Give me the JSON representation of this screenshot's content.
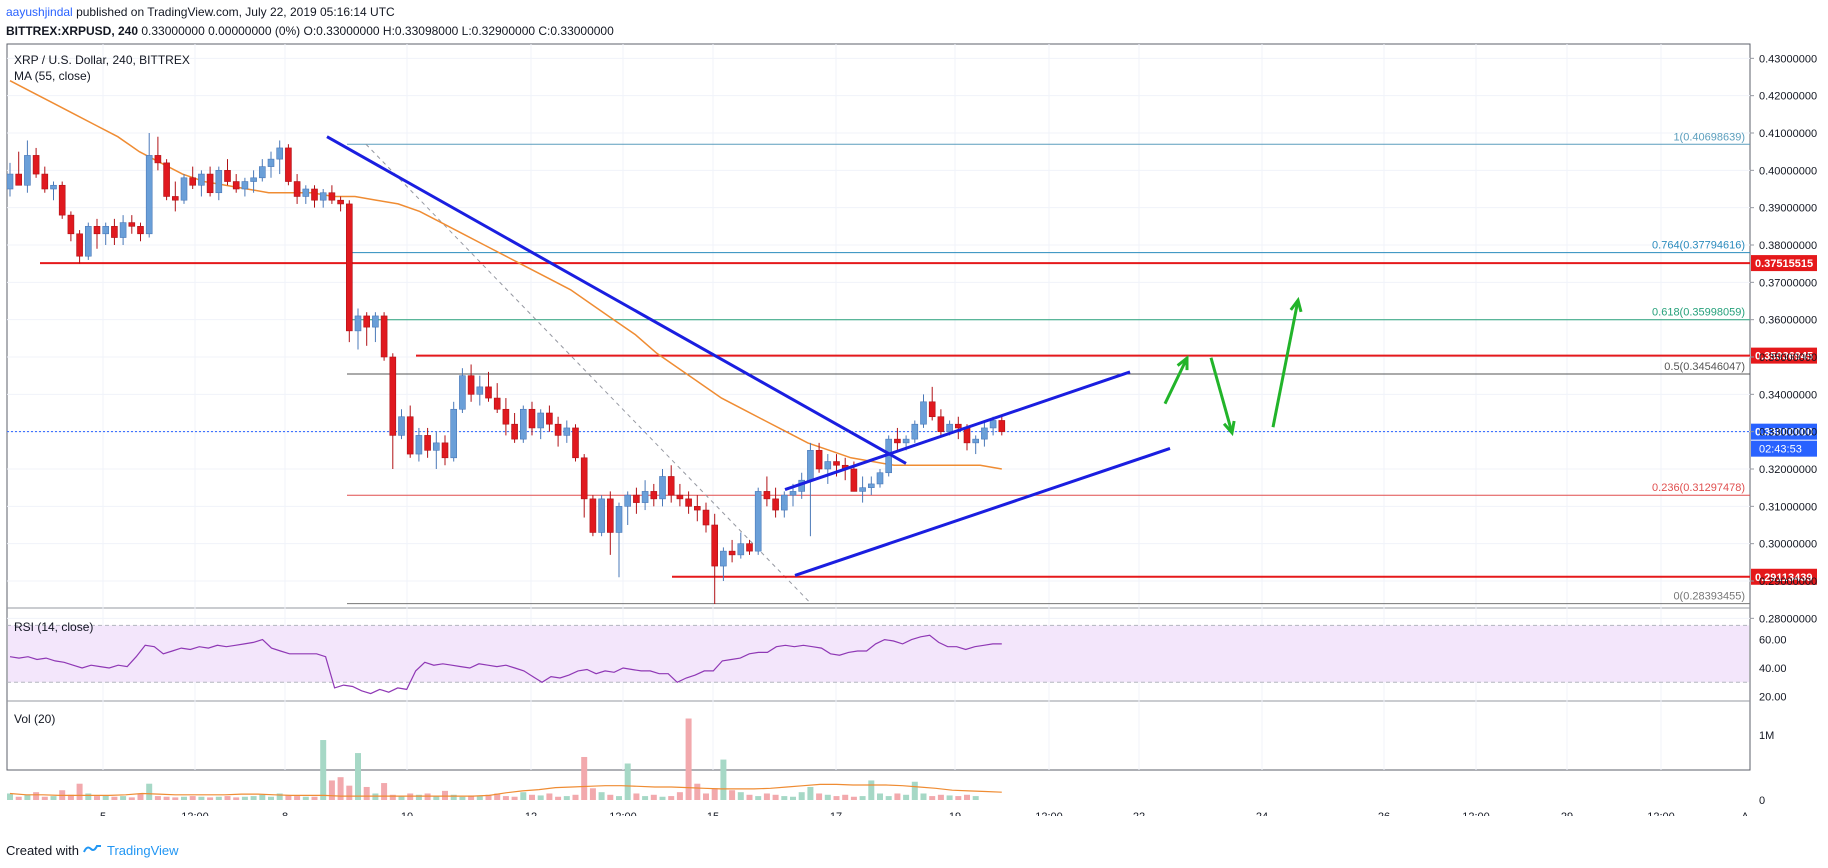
{
  "header": {
    "author": "aayushjindal",
    "published": "published on TradingView.com, July 22, 2019 05:16:14 UTC",
    "symbol": "BITTREX:XRPUSD, 240",
    "ohlc": "0.33000000 0.00000000 (0%) O:0.33000000 H:0.33098000 L:0.32900000 C:0.33000000"
  },
  "footer": {
    "created_with": "Created with",
    "brand": "TradingView"
  },
  "chart_data": {
    "type": "candlestick",
    "title": "XRP / U.S. Dollar, 240, BITTREX",
    "indicator_ma": "MA (55, close)",
    "ylim": [
      0.275,
      0.4325
    ],
    "y_ticks": [
      "0.43000000",
      "0.42000000",
      "0.41000000",
      "0.40000000",
      "0.39000000",
      "0.38000000",
      "0.37000000",
      "0.36000000",
      "0.35000000",
      "0.34000000",
      "0.33000000",
      "0.32000000",
      "0.31000000",
      "0.30000000",
      "0.29000000",
      "0.28000000"
    ],
    "x_ticks": [
      "5",
      "12:00",
      "8",
      "10",
      "12",
      "12:00",
      "15",
      "17",
      "19",
      "12:00",
      "22",
      "24",
      "26",
      "12:00",
      "29",
      "12:00",
      "A"
    ],
    "candles": [
      [
        0.395,
        0.402,
        0.393,
        0.399
      ],
      [
        0.399,
        0.405,
        0.396,
        0.396
      ],
      [
        0.396,
        0.408,
        0.394,
        0.404
      ],
      [
        0.404,
        0.406,
        0.398,
        0.399
      ],
      [
        0.399,
        0.401,
        0.394,
        0.395
      ],
      [
        0.395,
        0.397,
        0.392,
        0.396
      ],
      [
        0.396,
        0.397,
        0.387,
        0.388
      ],
      [
        0.388,
        0.389,
        0.381,
        0.383
      ],
      [
        0.383,
        0.384,
        0.375,
        0.377
      ],
      [
        0.377,
        0.386,
        0.376,
        0.385
      ],
      [
        0.385,
        0.387,
        0.379,
        0.383
      ],
      [
        0.383,
        0.386,
        0.38,
        0.385
      ],
      [
        0.385,
        0.387,
        0.38,
        0.382
      ],
      [
        0.382,
        0.388,
        0.38,
        0.386
      ],
      [
        0.386,
        0.388,
        0.383,
        0.385
      ],
      [
        0.385,
        0.386,
        0.381,
        0.383
      ],
      [
        0.383,
        0.41,
        0.382,
        0.404
      ],
      [
        0.404,
        0.409,
        0.4,
        0.402
      ],
      [
        0.402,
        0.403,
        0.392,
        0.393
      ],
      [
        0.393,
        0.397,
        0.389,
        0.392
      ],
      [
        0.392,
        0.399,
        0.391,
        0.398
      ],
      [
        0.398,
        0.401,
        0.395,
        0.396
      ],
      [
        0.396,
        0.4,
        0.393,
        0.399
      ],
      [
        0.399,
        0.401,
        0.393,
        0.394
      ],
      [
        0.394,
        0.401,
        0.392,
        0.4
      ],
      [
        0.4,
        0.403,
        0.396,
        0.397
      ],
      [
        0.397,
        0.399,
        0.394,
        0.395
      ],
      [
        0.395,
        0.398,
        0.393,
        0.397
      ],
      [
        0.397,
        0.4,
        0.394,
        0.398
      ],
      [
        0.398,
        0.403,
        0.397,
        0.401
      ],
      [
        0.401,
        0.405,
        0.398,
        0.403
      ],
      [
        0.403,
        0.408,
        0.399,
        0.406
      ],
      [
        0.406,
        0.407,
        0.396,
        0.397
      ],
      [
        0.397,
        0.399,
        0.391,
        0.393
      ],
      [
        0.393,
        0.396,
        0.391,
        0.395
      ],
      [
        0.395,
        0.396,
        0.39,
        0.392
      ],
      [
        0.392,
        0.395,
        0.39,
        0.394
      ],
      [
        0.394,
        0.396,
        0.391,
        0.392
      ],
      [
        0.392,
        0.393,
        0.389,
        0.391
      ],
      [
        0.391,
        0.392,
        0.354,
        0.357
      ],
      [
        0.357,
        0.363,
        0.352,
        0.361
      ],
      [
        0.361,
        0.362,
        0.353,
        0.358
      ],
      [
        0.358,
        0.362,
        0.354,
        0.361
      ],
      [
        0.361,
        0.362,
        0.349,
        0.35
      ],
      [
        0.35,
        0.351,
        0.32,
        0.329
      ],
      [
        0.329,
        0.336,
        0.328,
        0.334
      ],
      [
        0.334,
        0.337,
        0.323,
        0.324
      ],
      [
        0.324,
        0.331,
        0.322,
        0.329
      ],
      [
        0.329,
        0.331,
        0.323,
        0.325
      ],
      [
        0.325,
        0.33,
        0.32,
        0.327
      ],
      [
        0.327,
        0.329,
        0.321,
        0.323
      ],
      [
        0.323,
        0.338,
        0.322,
        0.336
      ],
      [
        0.336,
        0.347,
        0.335,
        0.345
      ],
      [
        0.345,
        0.348,
        0.338,
        0.34
      ],
      [
        0.34,
        0.345,
        0.337,
        0.342
      ],
      [
        0.342,
        0.346,
        0.338,
        0.339
      ],
      [
        0.339,
        0.343,
        0.335,
        0.336
      ],
      [
        0.336,
        0.339,
        0.329,
        0.332
      ],
      [
        0.332,
        0.335,
        0.327,
        0.328
      ],
      [
        0.328,
        0.337,
        0.327,
        0.336
      ],
      [
        0.336,
        0.338,
        0.329,
        0.331
      ],
      [
        0.331,
        0.336,
        0.328,
        0.335
      ],
      [
        0.335,
        0.337,
        0.33,
        0.332
      ],
      [
        0.332,
        0.334,
        0.326,
        0.329
      ],
      [
        0.329,
        0.333,
        0.327,
        0.331
      ],
      [
        0.331,
        0.332,
        0.322,
        0.323
      ],
      [
        0.323,
        0.324,
        0.307,
        0.312
      ],
      [
        0.312,
        0.313,
        0.302,
        0.303
      ],
      [
        0.303,
        0.313,
        0.302,
        0.312
      ],
      [
        0.312,
        0.314,
        0.297,
        0.303
      ],
      [
        0.303,
        0.311,
        0.291,
        0.31
      ],
      [
        0.31,
        0.314,
        0.305,
        0.313
      ],
      [
        0.313,
        0.315,
        0.308,
        0.311
      ],
      [
        0.311,
        0.317,
        0.309,
        0.314
      ],
      [
        0.314,
        0.316,
        0.31,
        0.312
      ],
      [
        0.312,
        0.32,
        0.31,
        0.318
      ],
      [
        0.318,
        0.321,
        0.311,
        0.313
      ],
      [
        0.313,
        0.316,
        0.31,
        0.312
      ],
      [
        0.312,
        0.314,
        0.308,
        0.31
      ],
      [
        0.31,
        0.313,
        0.306,
        0.309
      ],
      [
        0.309,
        0.311,
        0.303,
        0.305
      ],
      [
        0.305,
        0.308,
        0.283,
        0.294
      ],
      [
        0.294,
        0.299,
        0.29,
        0.298
      ],
      [
        0.298,
        0.301,
        0.295,
        0.297
      ],
      [
        0.297,
        0.303,
        0.296,
        0.3
      ],
      [
        0.3,
        0.301,
        0.297,
        0.298
      ],
      [
        0.298,
        0.315,
        0.297,
        0.314
      ],
      [
        0.314,
        0.318,
        0.31,
        0.312
      ],
      [
        0.312,
        0.315,
        0.307,
        0.309
      ],
      [
        0.309,
        0.314,
        0.307,
        0.313
      ],
      [
        0.313,
        0.316,
        0.31,
        0.314
      ],
      [
        0.314,
        0.319,
        0.312,
        0.317
      ],
      [
        0.317,
        0.327,
        0.302,
        0.325
      ],
      [
        0.325,
        0.327,
        0.319,
        0.32
      ],
      [
        0.32,
        0.324,
        0.316,
        0.322
      ],
      [
        0.322,
        0.324,
        0.318,
        0.321
      ],
      [
        0.321,
        0.323,
        0.317,
        0.32
      ],
      [
        0.32,
        0.322,
        0.314,
        0.314
      ],
      [
        0.314,
        0.318,
        0.311,
        0.315
      ],
      [
        0.315,
        0.318,
        0.313,
        0.316
      ],
      [
        0.316,
        0.32,
        0.315,
        0.319
      ],
      [
        0.319,
        0.329,
        0.318,
        0.328
      ],
      [
        0.328,
        0.331,
        0.325,
        0.327
      ],
      [
        0.327,
        0.329,
        0.325,
        0.328
      ],
      [
        0.328,
        0.333,
        0.327,
        0.332
      ],
      [
        0.332,
        0.34,
        0.331,
        0.338
      ],
      [
        0.338,
        0.342,
        0.333,
        0.334
      ],
      [
        0.334,
        0.336,
        0.329,
        0.33
      ],
      [
        0.33,
        0.333,
        0.329,
        0.332
      ],
      [
        0.332,
        0.334,
        0.328,
        0.331
      ],
      [
        0.331,
        0.332,
        0.325,
        0.327
      ],
      [
        0.327,
        0.329,
        0.324,
        0.328
      ],
      [
        0.328,
        0.333,
        0.326,
        0.331
      ],
      [
        0.331,
        0.334,
        0.329,
        0.333
      ],
      [
        0.333,
        0.334,
        0.329,
        0.33
      ]
    ],
    "ma55": [
      0.424,
      0.421,
      0.418,
      0.415,
      0.412,
      0.409,
      0.405,
      0.402,
      0.399,
      0.397,
      0.396,
      0.395,
      0.394,
      0.394,
      0.394,
      0.393,
      0.393,
      0.392,
      0.391,
      0.389,
      0.386,
      0.383,
      0.38,
      0.377,
      0.374,
      0.371,
      0.368,
      0.364,
      0.36,
      0.356,
      0.351,
      0.347,
      0.343,
      0.339,
      0.336,
      0.333,
      0.33,
      0.327,
      0.325,
      0.323,
      0.322,
      0.321,
      0.321,
      0.321,
      0.321,
      0.321,
      0.32
    ],
    "rsi_label": "RSI (14, close)",
    "rsi_ticks": [
      "60.00",
      "40.00",
      "20.00"
    ],
    "rsi": [
      48,
      47,
      48,
      46,
      47,
      45,
      44,
      42,
      40,
      42,
      41,
      40,
      42,
      41,
      48,
      56,
      55,
      50,
      52,
      54,
      53,
      55,
      54,
      56,
      55,
      56,
      57,
      58,
      60,
      54,
      52,
      50,
      50,
      50,
      50,
      48,
      26,
      28,
      27,
      24,
      22,
      25,
      23,
      26,
      25,
      38,
      44,
      42,
      43,
      42,
      41,
      40,
      43,
      42,
      41,
      42,
      40,
      38,
      34,
      30,
      34,
      33,
      35,
      38,
      39,
      36,
      38,
      37,
      40,
      39,
      38,
      38,
      36,
      36,
      30,
      33,
      35,
      38,
      38,
      45,
      46,
      47,
      50,
      51,
      51,
      55,
      56,
      55,
      56,
      55,
      54,
      50,
      49,
      51,
      52,
      52,
      57,
      60,
      59,
      57,
      60,
      62,
      63,
      58,
      55,
      55,
      53,
      55,
      56,
      57,
      57
    ],
    "vol_label": "Vol (20)",
    "vol_ticks": [
      "1M",
      "0"
    ],
    "volume": [
      0.1,
      0.05,
      0.08,
      0.12,
      0.05,
      0.06,
      0.15,
      0.08,
      0.25,
      0.1,
      0.06,
      0.07,
      0.05,
      0.06,
      0.04,
      0.1,
      0.25,
      0.06,
      0.05,
      0.04,
      0.05,
      0.06,
      0.05,
      0.04,
      0.05,
      0.06,
      0.04,
      0.05,
      0.06,
      0.08,
      0.05,
      0.1,
      0.07,
      0.06,
      0.05,
      0.05,
      0.92,
      0.3,
      0.35,
      0.22,
      0.72,
      0.2,
      0.1,
      0.26,
      0.08,
      0.06,
      0.1,
      0.08,
      0.1,
      0.06,
      0.14,
      0.08,
      0.05,
      0.07,
      0.06,
      0.08,
      0.1,
      0.06,
      0.05,
      0.12,
      0.08,
      0.07,
      0.1,
      0.05,
      0.06,
      0.08,
      0.66,
      0.18,
      0.12,
      0.08,
      0.06,
      0.56,
      0.1,
      0.06,
      0.08,
      0.05,
      0.06,
      0.12,
      1.25,
      0.25,
      0.1,
      0.18,
      0.62,
      0.15,
      0.12,
      0.08,
      0.06,
      0.1,
      0.08,
      0.06,
      0.05,
      0.12,
      0.2,
      0.1,
      0.08,
      0.06,
      0.08,
      0.05,
      0.06,
      0.3,
      0.1,
      0.06,
      0.1,
      0.08,
      0.28,
      0.1,
      0.06,
      0.08,
      0.07,
      0.06,
      0.08,
      0.06
    ],
    "vol_ma": [
      0.1,
      0.08,
      0.08,
      0.07,
      0.07,
      0.07,
      0.07,
      0.08,
      0.1,
      0.09,
      0.08,
      0.08,
      0.08,
      0.08,
      0.09,
      0.09,
      0.08,
      0.07,
      0.07,
      0.07,
      0.06,
      0.06,
      0.06,
      0.06,
      0.06,
      0.06,
      0.06,
      0.06,
      0.06,
      0.07,
      0.11,
      0.14,
      0.16,
      0.19,
      0.2,
      0.21,
      0.22,
      0.22,
      0.21,
      0.2,
      0.2,
      0.19,
      0.18,
      0.17,
      0.17,
      0.17,
      0.18,
      0.2,
      0.22,
      0.24,
      0.24,
      0.23,
      0.23,
      0.23,
      0.22,
      0.2,
      0.18,
      0.15,
      0.14,
      0.13,
      0.12
    ],
    "fib_levels": [
      {
        "label": "1(0.40698639)",
        "value": 0.40698639,
        "color": "#5b9ebd"
      },
      {
        "label": "0.764(0.37794616)",
        "value": 0.37794616,
        "color": "#2a8bbd"
      },
      {
        "label": "0.618(0.35998059)",
        "value": 0.35998059,
        "color": "#26a17b"
      },
      {
        "label": "0.5(0.34546047)",
        "value": 0.34546047,
        "color": "#555555"
      },
      {
        "label": "0.236(0.31297478)",
        "value": 0.31297478,
        "color": "#e04f4f"
      },
      {
        "label": "0(0.28393455)",
        "value": 0.28393455,
        "color": "#777777"
      }
    ],
    "horizontal_levels": [
      {
        "label": "0.37515515",
        "value": 0.37515515
      },
      {
        "label": "0.35036945",
        "value": 0.35036945
      },
      {
        "label": "0.29113439",
        "value": 0.29113439
      }
    ],
    "current_price_label": "0.33000000",
    "countdown_label": "02:43:53",
    "colors": {
      "up": "#6a9fd8",
      "down": "#e0191f",
      "ma": "#ef8c33",
      "trend": "#1a1ee0",
      "arrow": "#22b42a",
      "level": "#e5191b",
      "rsi_band": "#f3e6fb",
      "rsi_line": "#8f38b5"
    }
  }
}
